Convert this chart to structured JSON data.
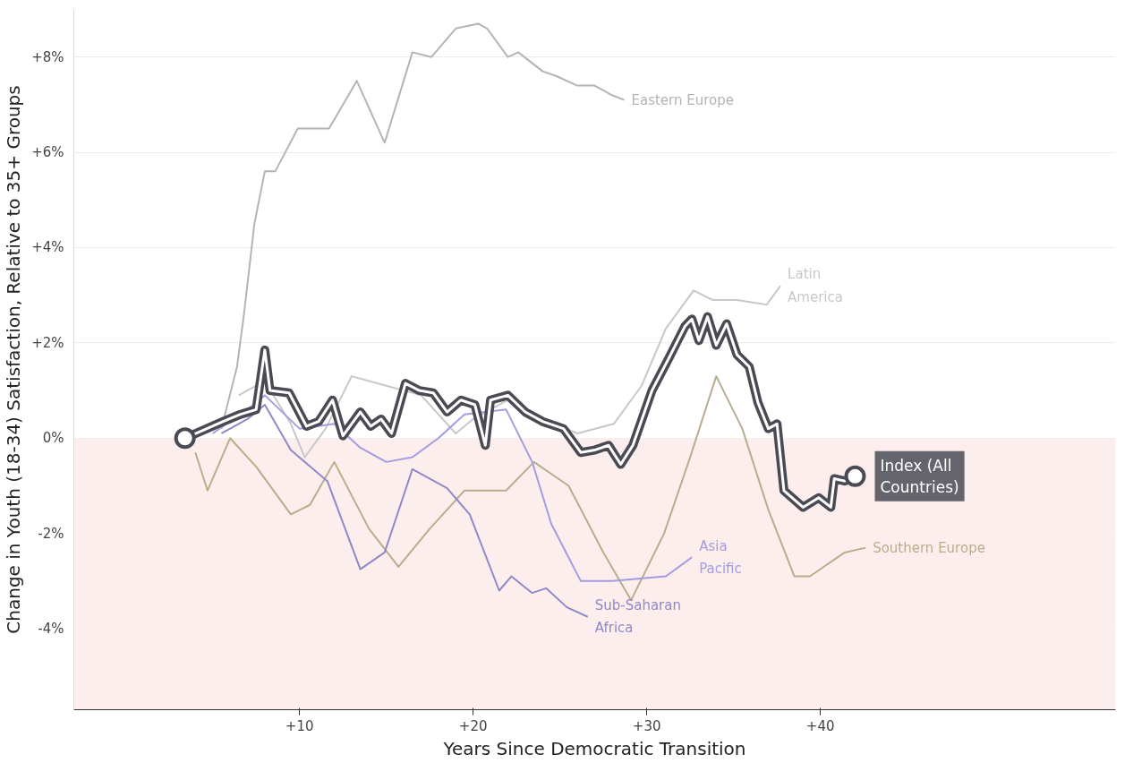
{
  "chart_data": {
    "type": "line",
    "xlabel": "Years Since Democratic Transition",
    "ylabel": "Change in Youth (18-34) Satisfaction, Relative to 35+ Groups",
    "xlim": [
      -3,
      57
    ],
    "ylim": [
      -5.7,
      9
    ],
    "xticks": [
      {
        "value": 10,
        "label": "+10"
      },
      {
        "value": 20,
        "label": "+20"
      },
      {
        "value": 30,
        "label": "+30"
      },
      {
        "value": 40,
        "label": "+40"
      }
    ],
    "yticks": [
      {
        "value": -4,
        "label": "-4%"
      },
      {
        "value": -2,
        "label": "-2%"
      },
      {
        "value": 0,
        "label": "0%"
      },
      {
        "value": 2,
        "label": "+2%"
      },
      {
        "value": 4,
        "label": "+4%"
      },
      {
        "value": 6,
        "label": "+6%"
      },
      {
        "value": 8,
        "label": "+8%"
      }
    ],
    "grid": "y",
    "bands": [
      {
        "axis": "y",
        "from": -5.7,
        "to": 0,
        "color": "#fdeeee"
      }
    ],
    "series": [
      {
        "name": "Eastern Europe",
        "color": "#b4b4b4",
        "x": [
          5.5,
          6.4,
          6.8,
          7.4,
          8.0,
          8.6,
          9.9,
          11.7,
          13.3,
          14.9,
          16.5,
          17.6,
          19.0,
          20.3,
          20.8,
          22.0,
          22.6,
          24.0,
          24.8,
          26.0,
          27.0,
          28.0,
          28.7
        ],
        "values": [
          0.2,
          1.5,
          2.6,
          4.5,
          5.6,
          5.6,
          6.5,
          6.5,
          7.5,
          6.2,
          8.1,
          8.0,
          8.6,
          8.7,
          8.6,
          8.0,
          8.1,
          7.7,
          7.6,
          7.4,
          7.4,
          7.2,
          7.1
        ]
      },
      {
        "name": "Latin\nAmerica",
        "color": "#c8c8c8",
        "x": [
          6.5,
          8.0,
          9.5,
          10.3,
          11.5,
          13.0,
          15.0,
          17.0,
          19.0,
          20.0,
          22.0,
          24.0,
          26.0,
          28.1,
          29.7,
          31.1,
          32.7,
          33.8,
          35.2,
          36.9,
          37.7
        ],
        "values": [
          0.9,
          1.2,
          0.3,
          -0.4,
          0.2,
          1.3,
          1.1,
          0.9,
          0.1,
          0.4,
          0.8,
          0.4,
          0.1,
          0.3,
          1.1,
          2.3,
          3.1,
          2.9,
          2.9,
          2.8,
          3.2
        ]
      },
      {
        "name": "Southern Europe",
        "color": "#b8ae8c",
        "x": [
          4.0,
          4.7,
          6.0,
          7.5,
          9.5,
          10.6,
          12.0,
          14.0,
          15.7,
          17.5,
          19.5,
          21.9,
          23.5,
          25.5,
          27.5,
          29.1,
          31.0,
          32.5,
          34.0,
          35.5,
          37.0,
          38.5,
          39.4,
          41.4,
          42.6
        ],
        "values": [
          -0.3,
          -1.1,
          0.0,
          -0.6,
          -1.6,
          -1.4,
          -0.5,
          -1.9,
          -2.7,
          -1.9,
          -1.1,
          -1.1,
          -0.5,
          -1.0,
          -2.4,
          -3.4,
          -2.0,
          -0.4,
          1.3,
          0.2,
          -1.5,
          -2.9,
          -2.9,
          -2.4,
          -2.3
        ]
      },
      {
        "name": "Asia\nPacific",
        "color": "#a39de0",
        "x": [
          5.0,
          7.0,
          8.0,
          10.0,
          12.0,
          13.5,
          15.0,
          16.5,
          18.0,
          19.5,
          21.9,
          23.4,
          24.5,
          26.2,
          28.0,
          31.1,
          32.6
        ],
        "values": [
          0.1,
          0.6,
          0.9,
          0.2,
          0.3,
          -0.2,
          -0.5,
          -0.4,
          0.0,
          0.5,
          0.6,
          -0.5,
          -1.8,
          -3.0,
          -3.0,
          -2.9,
          -2.5
        ]
      },
      {
        "name": "Sub-Saharan\nAfrica",
        "color": "#8f89c6",
        "x": [
          5.5,
          7.0,
          8.0,
          9.5,
          11.6,
          13.5,
          14.9,
          16.5,
          18.5,
          19.8,
          21.5,
          22.2,
          23.4,
          24.2,
          25.4,
          26.6
        ],
        "values": [
          0.1,
          0.4,
          0.7,
          -0.25,
          -0.9,
          -2.75,
          -2.4,
          -0.65,
          -1.05,
          -1.6,
          -3.2,
          -2.9,
          -3.25,
          -3.15,
          -3.55,
          -3.75
        ]
      },
      {
        "name": "Index (All\nCountries)",
        "color": "#4a4a55",
        "x": [
          3.4,
          5.6,
          6.6,
          7.5,
          8.0,
          8.3,
          9.4,
          10.4,
          11.1,
          11.9,
          12.5,
          13.5,
          14.1,
          14.7,
          15.3,
          16.1,
          16.9,
          17.7,
          18.5,
          19.3,
          20.1,
          20.7,
          21.0,
          22.0,
          23.0,
          24.0,
          25.2,
          26.2,
          27.0,
          27.8,
          28.5,
          29.2,
          30.3,
          31.3,
          32.2,
          32.6,
          33.0,
          33.5,
          34.0,
          34.6,
          35.2,
          35.9,
          36.4,
          37.0,
          37.5,
          37.9,
          39.0,
          39.9,
          40.6,
          40.8,
          41.4,
          42.0
        ],
        "values": [
          0.0,
          0.35,
          0.5,
          0.6,
          1.85,
          1.0,
          0.95,
          0.25,
          0.35,
          0.8,
          0.05,
          0.55,
          0.25,
          0.4,
          0.1,
          1.15,
          1.0,
          0.95,
          0.55,
          0.8,
          0.7,
          -0.15,
          0.8,
          0.9,
          0.55,
          0.35,
          0.2,
          -0.3,
          -0.25,
          -0.15,
          -0.55,
          -0.15,
          1.0,
          1.7,
          2.35,
          2.5,
          2.05,
          2.55,
          1.95,
          2.4,
          1.75,
          1.5,
          0.75,
          0.2,
          0.3,
          -1.1,
          -1.45,
          -1.25,
          -1.45,
          -0.85,
          -0.9,
          -0.8
        ]
      }
    ]
  }
}
